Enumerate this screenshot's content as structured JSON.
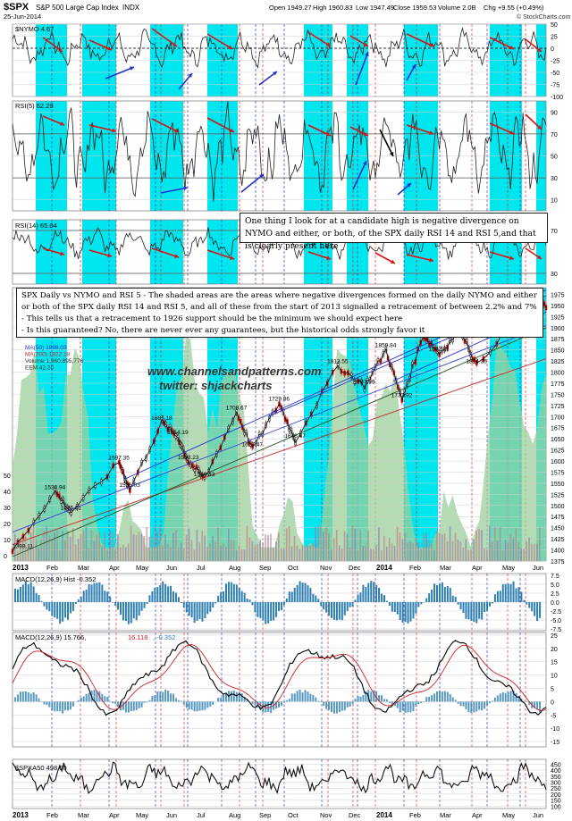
{
  "header": {
    "symbol": "$SPX",
    "name": "S&P 500 Large Cap Index",
    "exchange": "INDX",
    "date": "25-Jun-2014",
    "open": "Open 1949.27",
    "high": "High 1960.83",
    "low": "Low 1947.49",
    "close": "Close 1959.53",
    "volume": "Volume 2.0B",
    "change": "Chg +9.55 (+0.49%)",
    "source": "© StockCharts.com",
    "change_arrow": "up-triangle-icon"
  },
  "notes": {
    "top": "One thing I look for at a candidate high is negative divergence on NYMO and either, or both, of the SPX daily RSI 14 and RSI 5,and that is clearly present here",
    "main_lines": [
      "SPX Daily vs NYMO and RSI 5 - The shaded areas are the areas where negative divergences formed on the daily NYMO and either",
      "or both of the SPX daily RSI 14 and RSI 5, and all of these from the start of 2013 signalled a retracement of between 2.2% and 7%",
      "- This tells us that a retracement to 1926 support should be the minimum we should expect here",
      "- Is this guaranteed? No, there are never ever any guarantees, but the historical odds strongly favor it"
    ]
  },
  "watermark": {
    "site": "www.channelsandpatterns.com",
    "twitter": "twitter: shjackcharts"
  },
  "colors": {
    "shade": "#00e6ee",
    "red_arrow": "#dd1111",
    "blue_arrow": "#2233cc",
    "volume_area": "#9ccf9c",
    "macd_hist": "#2f7fb0",
    "ma50": "#3344cc",
    "ma200": "#225522"
  },
  "chart_data": [
    {
      "type": "line",
      "panel": "nymo",
      "label": "$NYMO 4.67",
      "yticks": [
        50,
        25,
        0,
        -25,
        -50,
        -75,
        -100
      ],
      "ylim": [
        -100,
        50
      ],
      "grid": true
    },
    {
      "type": "line",
      "panel": "rsi5",
      "label": "RSI(5) 62.29",
      "yticks": [
        90,
        70,
        50,
        30,
        10
      ],
      "ylim": [
        0,
        100
      ],
      "levels": [
        70,
        30
      ]
    },
    {
      "type": "line",
      "panel": "rsi14",
      "label": "RSI(14) 65.04",
      "yticks": [
        70,
        30
      ],
      "ylim": [
        20,
        80
      ],
      "levels": [
        70,
        30
      ]
    },
    {
      "type": "line",
      "panel": "price",
      "legend": [
        "MA(50) 1898.03",
        "MA(200) 1822.18",
        "Volume 1,960,895,776",
        "EEM 42.20"
      ],
      "yticks": [
        1975,
        1950,
        1925,
        1900,
        1875,
        1850,
        1825,
        1800,
        1775,
        1750,
        1725,
        1700,
        1675,
        1650,
        1625,
        1600,
        1575,
        1550,
        1525,
        1500,
        1475,
        1450,
        1425,
        1400,
        1375
      ],
      "ylim": [
        1375,
        1990
      ],
      "left_ticks": [
        "50",
        "40",
        "30",
        "20",
        "10",
        "0"
      ],
      "annotations": [
        {
          "text": "1398.11",
          "x": 0.02,
          "y": 1398
        },
        {
          "text": "1530.94",
          "x": 0.08,
          "y": 1531
        },
        {
          "text": "1485.01",
          "x": 0.11,
          "y": 1485
        },
        {
          "text": "1597.35",
          "x": 0.2,
          "y": 1597
        },
        {
          "text": "1536.03",
          "x": 0.22,
          "y": 1536
        },
        {
          "text": "1687.18",
          "x": 0.28,
          "y": 1687
        },
        {
          "text": "1654.19",
          "x": 0.31,
          "y": 1654
        },
        {
          "text": "1598.23",
          "x": 0.33,
          "y": 1598
        },
        {
          "text": "1560.33",
          "x": 0.36,
          "y": 1560
        },
        {
          "text": "1709.67",
          "x": 0.42,
          "y": 1710
        },
        {
          "text": "1627.47",
          "x": 0.45,
          "y": 1627
        },
        {
          "text": "1729.86",
          "x": 0.5,
          "y": 1730
        },
        {
          "text": "1646.47",
          "x": 0.53,
          "y": 1646
        },
        {
          "text": "1813.55",
          "x": 0.61,
          "y": 1814
        },
        {
          "text": "1767.99",
          "x": 0.66,
          "y": 1768
        },
        {
          "text": "1859.84",
          "x": 0.7,
          "y": 1850
        },
        {
          "text": "1737.92",
          "x": 0.73,
          "y": 1738
        },
        {
          "text": "1883.57",
          "x": 0.77,
          "y": 1884
        },
        {
          "text": "1842.11",
          "x": 0.8,
          "y": 1842
        },
        {
          "text": "1897.28",
          "x": 0.84,
          "y": 1897
        },
        {
          "text": "1814.36",
          "x": 0.87,
          "y": 1814
        },
        {
          "text": "1962.17",
          "x": 0.97,
          "y": 1962
        }
      ]
    },
    {
      "type": "bar",
      "panel": "macd_hist",
      "label": "MACD(12,26,9) Hist -0.352",
      "yticks": [
        7.5,
        5.0,
        2.5,
        0.0,
        -2.5,
        -5.0,
        -7.5
      ],
      "ylim": [
        -8,
        8
      ]
    },
    {
      "type": "line",
      "panel": "macd",
      "label_prefix": "MACD(12,26,9)",
      "label_macd": "15.766",
      "label_signal": "16.118",
      "label_hist": "-0.352",
      "yticks": [
        25,
        20,
        15,
        10,
        5,
        0,
        -5,
        -10,
        -15
      ],
      "ylim": [
        -17,
        26
      ]
    },
    {
      "type": "line",
      "panel": "spxa50",
      "label": "$SPXA50 498.00",
      "yticks": [
        450,
        400,
        350,
        300,
        250,
        200,
        150,
        100
      ],
      "ylim": [
        80,
        490
      ]
    }
  ],
  "x_axis": {
    "labels": [
      "2013",
      "Feb",
      "Mar",
      "Apr",
      "May",
      "Jun",
      "Jul",
      "Aug",
      "Sep",
      "Oct",
      "Nov",
      "Dec",
      "2014",
      "Feb",
      "Mar",
      "Apr",
      "May",
      "Jun"
    ],
    "bold": [
      "2013",
      "2014"
    ]
  }
}
